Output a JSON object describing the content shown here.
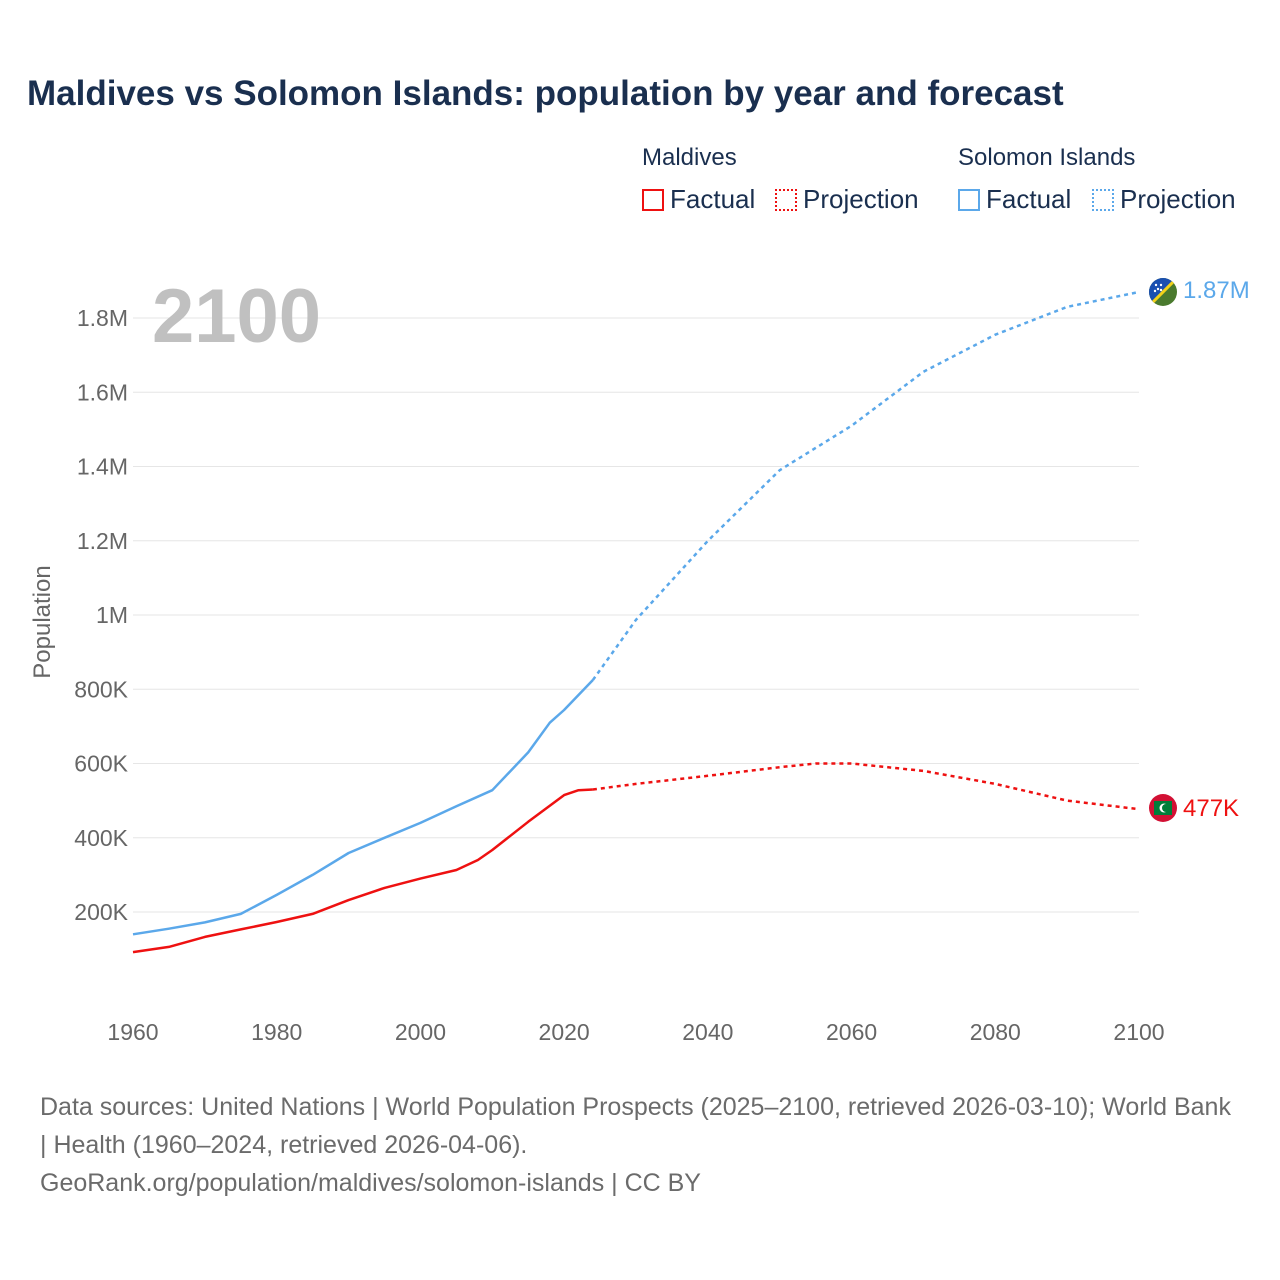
{
  "title": "Maldives vs Solomon Islands: population by year and forecast",
  "legend": {
    "groups": [
      {
        "name": "Maldives",
        "factual": "Factual",
        "projection": "Projection",
        "color": "#ee1111"
      },
      {
        "name": "Solomon Islands",
        "factual": "Factual",
        "projection": "Projection",
        "color": "#5ba8ea"
      }
    ]
  },
  "year_overlay": "2100",
  "end_labels": {
    "solomon": "1.87M",
    "maldives": "477K"
  },
  "source": {
    "line1": "Data sources: United Nations | World Population Prospects (2025–2100, retrieved 2026-03-10); World Bank | Health (1960–2024, retrieved 2026-04-06).",
    "line2": "GeoRank.org/population/maldives/solomon-islands | CC BY"
  },
  "chart_data": {
    "type": "line",
    "title": "Maldives vs Solomon Islands: population by year and forecast",
    "xlabel": "",
    "ylabel": "Population",
    "xlim": [
      1960,
      2100
    ],
    "ylim": [
      0,
      1900000
    ],
    "xticks": [
      1960,
      1980,
      2000,
      2020,
      2040,
      2060,
      2080,
      2100
    ],
    "xtick_labels": [
      "1960",
      "1980",
      "2000",
      "2020",
      "2040",
      "2060",
      "2080",
      "2100"
    ],
    "yticks": [
      200000,
      400000,
      600000,
      800000,
      1000000,
      1200000,
      1400000,
      1600000,
      1800000
    ],
    "ytick_labels": [
      "200K",
      "400K",
      "600K",
      "800K",
      "1M",
      "1.2M",
      "1.4M",
      "1.6M",
      "1.8M"
    ],
    "grid": true,
    "legend_position": "top-right",
    "projection_start": 2024,
    "series": [
      {
        "name": "Solomon Islands",
        "color": "#5ba8ea",
        "x": [
          1960,
          1965,
          1970,
          1975,
          1980,
          1985,
          1990,
          1995,
          2000,
          2005,
          2010,
          2015,
          2018,
          2020,
          2024,
          2030,
          2040,
          2050,
          2060,
          2070,
          2080,
          2090,
          2100
        ],
        "y": [
          140000,
          155000,
          172000,
          195000,
          246000,
          300000,
          359000,
          400000,
          440000,
          485000,
          528000,
          630000,
          710000,
          744000,
          825000,
          987000,
          1200000,
          1390000,
          1510000,
          1655000,
          1755000,
          1830000,
          1870000
        ]
      },
      {
        "name": "Maldives",
        "color": "#ee1111",
        "x": [
          1960,
          1965,
          1970,
          1975,
          1980,
          1985,
          1990,
          1995,
          2000,
          2005,
          2008,
          2010,
          2015,
          2020,
          2022,
          2024,
          2030,
          2040,
          2050,
          2055,
          2060,
          2070,
          2080,
          2090,
          2100
        ],
        "y": [
          92000,
          106000,
          133000,
          153000,
          173000,
          195000,
          232000,
          265000,
          290000,
          313000,
          340000,
          367000,
          443000,
          515000,
          528000,
          530000,
          545000,
          567000,
          590000,
          600000,
          600000,
          580000,
          545000,
          500000,
          477000
        ]
      }
    ]
  }
}
